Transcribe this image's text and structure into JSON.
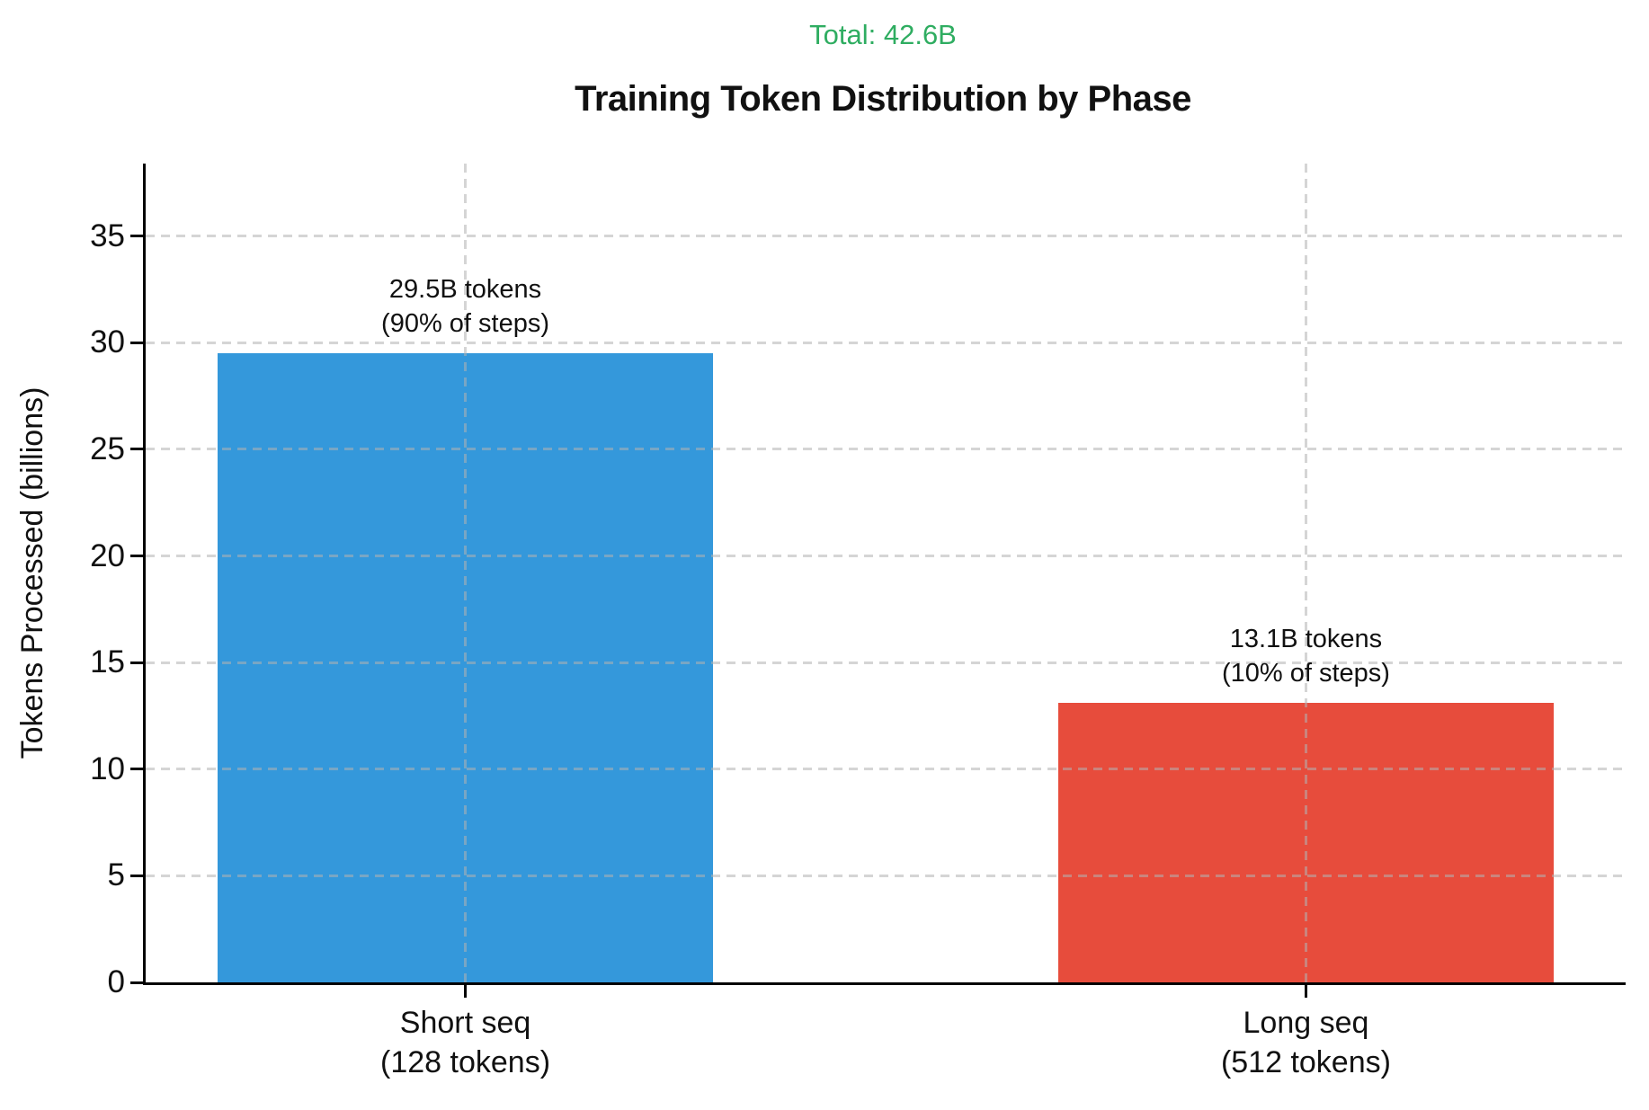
{
  "chart_data": {
    "type": "bar",
    "title": "Training Token Distribution by Phase",
    "total_annotation": "Total: 42.6B",
    "total_color": "#2fad61",
    "ylabel": "Tokens Processed (billions)",
    "xlabel": "",
    "categories": [
      "Short seq\n(128 tokens)",
      "Long seq\n(512 tokens)"
    ],
    "values": [
      29.5,
      13.1
    ],
    "bar_labels": [
      "29.5B tokens\n(90% of steps)",
      "13.1B tokens\n(10% of steps)"
    ],
    "bar_colors": [
      "#3498db",
      "#e74c3c"
    ],
    "yticks": [
      0,
      5,
      10,
      15,
      20,
      25,
      30,
      35
    ],
    "ylim": [
      0,
      38.4
    ],
    "grid": true,
    "grid_style": "dashed",
    "grid_color": "rgba(178,178,178,0.55)",
    "legend": false,
    "text_color": "#111111",
    "bar_center_fracs": [
      0.216,
      0.784
    ],
    "bar_width_frac": 0.335
  }
}
